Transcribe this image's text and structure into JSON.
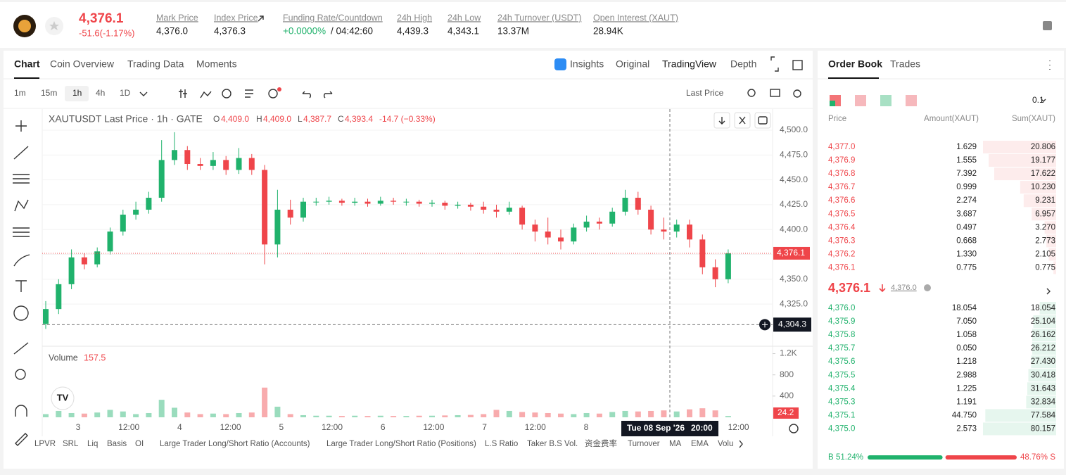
{
  "header": {
    "price": "4,376.1",
    "change": "-51.6(-1.17%)",
    "stats": [
      {
        "label": "Mark Price",
        "value": "4,376.0"
      },
      {
        "label": "Index Price",
        "value": "4,376.3"
      },
      {
        "label": "Funding Rate/Countdown",
        "value": "+0.0000%",
        "extra": "/ 04:42:60"
      },
      {
        "label": "24h High",
        "value": "4,439.3"
      },
      {
        "label": "24h Low",
        "value": "4,343.1"
      },
      {
        "label": "24h Turnover (USDT)",
        "value": "13.37M"
      },
      {
        "label": "Open Interest (XAUT)",
        "value": "28.94K"
      }
    ]
  },
  "tabs": [
    "Chart",
    "Coin Overview",
    "Trading Data",
    "Moments"
  ],
  "view_tabs": [
    "Insights",
    "Original",
    "TradingView",
    "Depth"
  ],
  "intervals": [
    "1m",
    "15m",
    "1h",
    "4h",
    "1D"
  ],
  "price_source": "Last Price",
  "chart_data": {
    "type": "candlestick",
    "title": "XAUTUSDT Last Price · 1h · GATE",
    "ohlc_legend": {
      "o_label": "O",
      "o": "4,409.0",
      "h_label": "H",
      "h": "4,409.0",
      "l_label": "L",
      "l": "4,387.7",
      "c_label": "C",
      "c": "4,393.4",
      "change": "-14.7 (−0.33%)"
    },
    "open": [
      4305,
      4320,
      4345,
      4372,
      4365,
      4378,
      4398,
      4415,
      4420,
      4432,
      4470,
      4480,
      4466,
      4464,
      4470,
      4460,
      4472,
      4460,
      4385,
      4420,
      4412,
      4428,
      4428,
      4429,
      4427,
      4428,
      4426,
      4429,
      4428,
      4428,
      4426,
      4427,
      4424,
      4425,
      4423,
      4420,
      4418,
      4422,
      4405,
      4398,
      4392,
      4388,
      4402,
      4408,
      4406,
      4418,
      4432,
      4420,
      4400,
      4398,
      4405,
      4390,
      4362,
      4350
    ],
    "high": [
      4328,
      4350,
      4380,
      4376,
      4382,
      4402,
      4420,
      4428,
      4438,
      4490,
      4498,
      4484,
      4472,
      4478,
      4474,
      4482,
      4476,
      4465,
      4440,
      4430,
      4432,
      4432,
      4433,
      4431,
      4432,
      4431,
      4433,
      4432,
      4431,
      4430,
      4430,
      4429,
      4428,
      4427,
      4428,
      4425,
      4428,
      4424,
      4410,
      4412,
      4400,
      4406,
      4414,
      4412,
      4422,
      4440,
      4438,
      4424,
      4412,
      4410,
      4410,
      4395,
      4370,
      4380
    ],
    "low": [
      4300,
      4315,
      4340,
      4360,
      4362,
      4375,
      4394,
      4410,
      4416,
      4428,
      4465,
      4460,
      4460,
      4460,
      4455,
      4456,
      4455,
      4365,
      4372,
      4405,
      4408,
      4424,
      4425,
      4424,
      4424,
      4423,
      4424,
      4425,
      4424,
      4423,
      4423,
      4420,
      4421,
      4419,
      4416,
      4412,
      4415,
      4400,
      4388,
      4385,
      4380,
      4385,
      4398,
      4400,
      4403,
      4414,
      4415,
      4395,
      4390,
      4392,
      4382,
      4355,
      4342,
      4346
    ],
    "close": [
      4320,
      4345,
      4372,
      4365,
      4378,
      4398,
      4415,
      4420,
      4432,
      4470,
      4480,
      4466,
      4464,
      4470,
      4460,
      4472,
      4460,
      4385,
      4420,
      4412,
      4428,
      4428,
      4429,
      4427,
      4428,
      4426,
      4429,
      4428,
      4428,
      4426,
      4427,
      4424,
      4425,
      4423,
      4420,
      4418,
      4422,
      4405,
      4398,
      4392,
      4388,
      4402,
      4408,
      4406,
      4418,
      4432,
      4420,
      4400,
      4398,
      4405,
      4390,
      4362,
      4350,
      4376.1
    ],
    "ylim": [
      4284,
      4521
    ],
    "yticks": [
      {
        "value": 4500,
        "label": "4,500.0"
      },
      {
        "value": 4475,
        "label": "4,475.0"
      },
      {
        "value": 4450,
        "label": "4,450.0"
      },
      {
        "value": 4425,
        "label": "4,425.0"
      },
      {
        "value": 4400,
        "label": "4,400.0"
      },
      {
        "value": 4375,
        "label": "4,375.0"
      },
      {
        "value": 4350,
        "label": "4,350.0"
      },
      {
        "value": 4325,
        "label": "4,325.0"
      }
    ],
    "last_price": {
      "value": 4376.1,
      "label": "4,376.1"
    },
    "crosshair_price": {
      "value": 4304.3,
      "label": "4,304.3"
    },
    "crosshair_date": "Tue 08 Sep '26",
    "crosshair_time": "20:00",
    "volume_title": "Volume",
    "volume_legend": "157.5",
    "volume": [
      60,
      120,
      80,
      70,
      90,
      140,
      110,
      60,
      80,
      330,
      180,
      90,
      60,
      70,
      60,
      80,
      90,
      560,
      200,
      60,
      40,
      30,
      30,
      25,
      30,
      25,
      30,
      25,
      25,
      30,
      30,
      35,
      40,
      45,
      60,
      140,
      120,
      100,
      90,
      80,
      70,
      60,
      80,
      70,
      100,
      120,
      110,
      120,
      130,
      110,
      150,
      170,
      130,
      24.2
    ],
    "vlim": [
      0,
      1300
    ],
    "vticks": [
      400,
      800,
      {
        "value": 1200,
        "label": "1.2K"
      }
    ],
    "up_color": "#20b26c",
    "down_color": "#ef454a",
    "xtick_labels": [
      "3",
      "12:00",
      "4",
      "12:00",
      "5",
      "12:00",
      "6",
      "12:00",
      "7",
      "12:00",
      "8",
      "12:00"
    ]
  },
  "indicators": [
    "LPVR",
    "SRL",
    "Liq",
    "Basis",
    "OI",
    "Large Trader Long/Short Ratio (Accounts)",
    "Large Trader Long/Short Ratio (Positions)",
    "L.S Ratio",
    "Taker B.S Vol.",
    "资金费率",
    "Turnover",
    "MA",
    "EMA",
    "Volu"
  ],
  "order_book": {
    "tabs": [
      "Order Book",
      "Trades"
    ],
    "precision": "0.1",
    "columns": [
      "Price",
      "Amount(XAUT)",
      "Sum(XAUT)"
    ],
    "asks": [
      [
        "4,377.0",
        "1.629",
        "20.806"
      ],
      [
        "4,376.9",
        "1.555",
        "19.177"
      ],
      [
        "4,376.8",
        "7.392",
        "17.622"
      ],
      [
        "4,376.7",
        "0.999",
        "10.230"
      ],
      [
        "4,376.6",
        "2.274",
        "9.231"
      ],
      [
        "4,376.5",
        "3.687",
        "6.957"
      ],
      [
        "4,376.4",
        "0.497",
        "3.270"
      ],
      [
        "4,376.3",
        "0.668",
        "2.773"
      ],
      [
        "4,376.2",
        "1.330",
        "2.105"
      ],
      [
        "4,376.1",
        "0.775",
        "0.775"
      ]
    ],
    "mid_price": "4,376.1",
    "mark": "4,376.0",
    "bids": [
      [
        "4,376.0",
        "18.054",
        "18.054"
      ],
      [
        "4,375.9",
        "7.050",
        "25.104"
      ],
      [
        "4,375.8",
        "1.058",
        "26.162"
      ],
      [
        "4,375.7",
        "0.050",
        "26.212"
      ],
      [
        "4,375.6",
        "1.218",
        "27.430"
      ],
      [
        "4,375.5",
        "2.988",
        "30.418"
      ],
      [
        "4,375.4",
        "1.225",
        "31.643"
      ],
      [
        "4,375.3",
        "1.191",
        "32.834"
      ],
      [
        "4,375.1",
        "44.750",
        "77.584"
      ],
      [
        "4,375.0",
        "2.573",
        "80.157"
      ]
    ],
    "buy_label": "B",
    "buy_ratio": "51.24%",
    "sell_ratio": "48.76%",
    "sell_label": "S"
  }
}
